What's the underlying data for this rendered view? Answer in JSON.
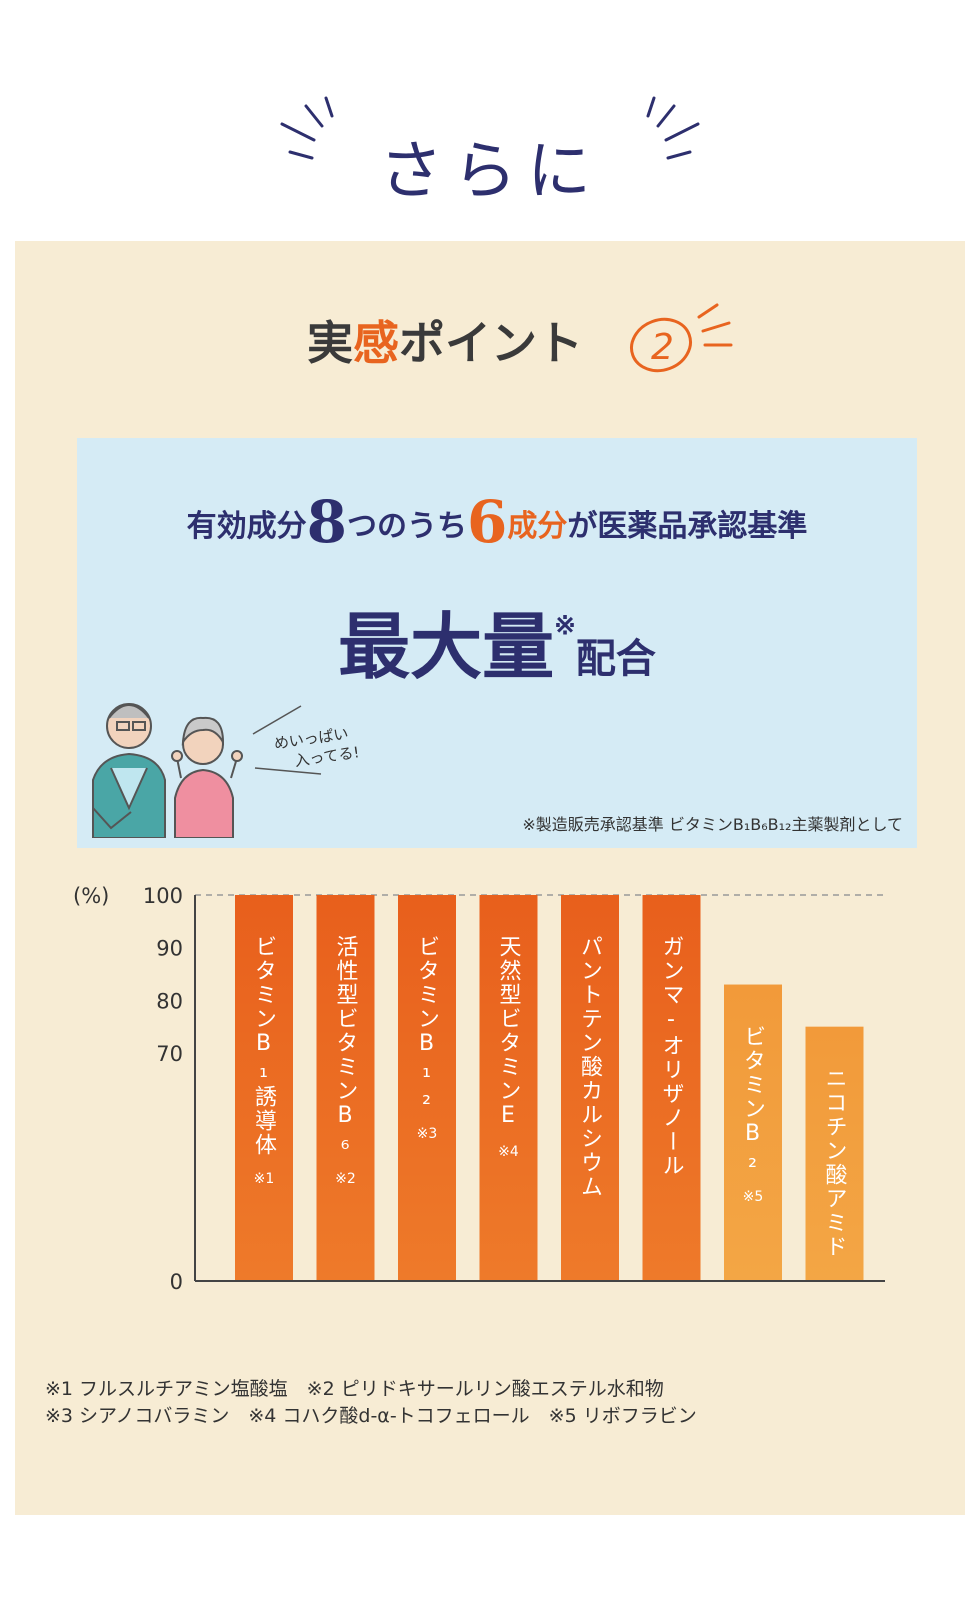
{
  "header": {
    "title": "さらに"
  },
  "point": {
    "prefix": "実",
    "highlight": "感",
    "suffix": "ポイント",
    "number": "2"
  },
  "info": {
    "line1_a": "有効成分",
    "line1_num1": "8",
    "line1_b": "つのうち",
    "line1_num2": "6",
    "line1_c": "成分",
    "line1_d": "が医薬品承認基準",
    "line2_big": "最大量",
    "line2_mark": "※",
    "line2_small": "配合",
    "speech_1": "めいっぱい",
    "speech_2": "入ってる!",
    "note": "※製造販売承認基準 ビタミンB₁B₆B₁₂主薬製剤として"
  },
  "chart_data": {
    "type": "bar",
    "ylabel": "(%)",
    "ylim": [
      0,
      100
    ],
    "yticks": [
      "100",
      "90",
      "80",
      "70",
      "0"
    ],
    "categories": [
      "ビタミンB₁誘導体",
      "活性型ビタミンB₆",
      "ビタミンB₁₂",
      "天然型ビタミンE",
      "パントテン酸カルシウム",
      "ガンマ-オリザノール",
      "ビタミンB₂",
      "ニコチン酸アミド"
    ],
    "values": [
      100,
      100,
      100,
      100,
      100,
      100,
      83,
      75
    ],
    "notes": [
      "※1",
      "※2",
      "※3",
      "※4",
      "",
      "",
      "※5",
      ""
    ],
    "colors": {
      "dark": "#e8641f",
      "light": "#f29a3a"
    }
  },
  "footnotes": {
    "line1": "※1 フルスルチアミン塩酸塩　※2 ピリドキサールリン酸エステル水和物",
    "line2": "※3 シアノコバラミン　※4 コハク酸d-α-トコフェロール　※5 リボフラビン"
  }
}
